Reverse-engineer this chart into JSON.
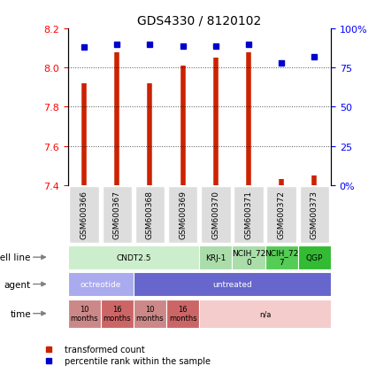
{
  "title": "GDS4330 / 8120102",
  "samples": [
    "GSM600366",
    "GSM600367",
    "GSM600368",
    "GSM600369",
    "GSM600370",
    "GSM600371",
    "GSM600372",
    "GSM600373"
  ],
  "transformed_counts": [
    7.92,
    8.08,
    7.92,
    8.01,
    8.05,
    8.08,
    7.43,
    7.45
  ],
  "percentile_ranks": [
    88,
    90,
    90,
    89,
    89,
    90,
    78,
    82
  ],
  "ylim": [
    7.4,
    8.2
  ],
  "y_ticks_left": [
    7.4,
    7.6,
    7.8,
    8.0,
    8.2
  ],
  "y_ticks_right": [
    0,
    25,
    50,
    75,
    100
  ],
  "bar_color": "#cc2200",
  "dot_color": "#0000cc",
  "bar_bottom": 7.4,
  "cell_line_groups": [
    {
      "label": "CNDT2.5",
      "start": 0,
      "end": 4,
      "color": "#cceecc"
    },
    {
      "label": "KRJ-1",
      "start": 4,
      "end": 5,
      "color": "#aaddaa"
    },
    {
      "label": "NCIH_72\n0",
      "start": 5,
      "end": 6,
      "color": "#aaddaa"
    },
    {
      "label": "NCIH_72\n7",
      "start": 6,
      "end": 7,
      "color": "#55cc55"
    },
    {
      "label": "QGP",
      "start": 7,
      "end": 8,
      "color": "#33bb33"
    }
  ],
  "agent_groups": [
    {
      "label": "octreotide",
      "start": 0,
      "end": 2,
      "color": "#aaaaee"
    },
    {
      "label": "untreated",
      "start": 2,
      "end": 8,
      "color": "#6666cc"
    }
  ],
  "time_groups": [
    {
      "label": "10\nmonths",
      "start": 0,
      "end": 1,
      "color": "#cc8888"
    },
    {
      "label": "16\nmonths",
      "start": 1,
      "end": 2,
      "color": "#cc6666"
    },
    {
      "label": "10\nmonths",
      "start": 2,
      "end": 3,
      "color": "#cc8888"
    },
    {
      "label": "16\nmonths",
      "start": 3,
      "end": 4,
      "color": "#cc6666"
    },
    {
      "label": "n/a",
      "start": 4,
      "end": 8,
      "color": "#f4cccc"
    }
  ],
  "row_labels": [
    "cell line",
    "agent",
    "time"
  ],
  "legend_items": [
    {
      "label": "transformed count",
      "color": "#cc2200"
    },
    {
      "label": "percentile rank within the sample",
      "color": "#0000cc"
    }
  ]
}
